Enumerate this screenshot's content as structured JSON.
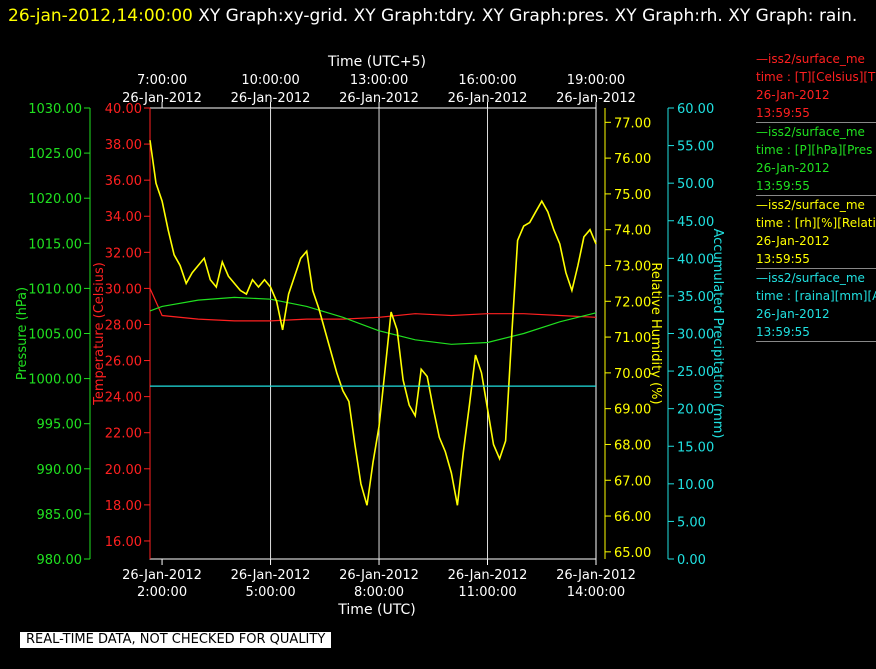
{
  "header": {
    "timestamp": "26-jan-2012,14:00:00",
    "title": "XY Graph:xy-grid.  XY Graph:tdry.  XY Graph:pres.  XY Graph:rh.  XY Graph: rain."
  },
  "quality_note": "REAL-TIME DATA, NOT CHECKED FOR QUALITY",
  "legend": [
    {
      "color": "#ff2020",
      "name": "—iss2/surface_me",
      "line2": "time : [T][Celsius][T",
      "date": "26-Jan-2012",
      "time": "13:59:55"
    },
    {
      "color": "#20e020",
      "name": "—iss2/surface_me",
      "line2": "time : [P][hPa][Pres",
      "date": "26-Jan-2012",
      "time": "13:59:55"
    },
    {
      "color": "#ffff00",
      "name": "—iss2/surface_me",
      "line2": "time : [rh][%][Relati",
      "date": "26-Jan-2012",
      "time": "13:59:55"
    },
    {
      "color": "#20e0e0",
      "name": "—iss2/surface_me",
      "line2": "time : [raina][mm][A",
      "date": "26-Jan-2012",
      "time": "13:59:55"
    }
  ],
  "chart_data": {
    "type": "line",
    "x_bottom": {
      "label": "Time (UTC)",
      "range": [
        "26-Jan-2012 1:40:00",
        "26-Jan-2012 14:00:00"
      ],
      "ticks": [
        {
          "date": "26-Jan-2012",
          "time": "2:00:00"
        },
        {
          "date": "26-Jan-2012",
          "time": "5:00:00"
        },
        {
          "date": "26-Jan-2012",
          "time": "8:00:00"
        },
        {
          "date": "26-Jan-2012",
          "time": "11:00:00"
        },
        {
          "date": "26-Jan-2012",
          "time": "14:00:00"
        }
      ]
    },
    "x_top": {
      "label": "Time (UTC+5)",
      "ticks": [
        {
          "time": "7:00:00",
          "date": "26-Jan-2012"
        },
        {
          "time": "10:00:00",
          "date": "26-Jan-2012"
        },
        {
          "time": "13:00:00",
          "date": "26-Jan-2012"
        },
        {
          "time": "16:00:00",
          "date": "26-Jan-2012"
        },
        {
          "time": "19:00:00",
          "date": "26-Jan-2012"
        }
      ]
    },
    "axes": {
      "pressure": {
        "label": "Pressure (hPa)",
        "color": "#20e020",
        "range": [
          980,
          1030
        ],
        "ticks": [
          "1030.00",
          "1025.00",
          "1020.00",
          "1015.00",
          "1010.00",
          "1005.00",
          "1000.00",
          "995.00",
          "990.00",
          "985.00",
          "980.00"
        ]
      },
      "temperature": {
        "label": "Temperature (Celsius)",
        "color": "#ff2020",
        "range": [
          15,
          40
        ],
        "ticks": [
          "40.00",
          "38.00",
          "36.00",
          "34.00",
          "32.00",
          "30.00",
          "28.00",
          "26.00",
          "24.00",
          "22.00",
          "20.00",
          "18.00",
          "16.00"
        ]
      },
      "rh": {
        "label": "Relative Humidity (%)",
        "color": "#ffff00",
        "range": [
          64.8,
          77.4
        ],
        "ticks": [
          "77.00",
          "76.00",
          "75.00",
          "74.00",
          "73.00",
          "72.00",
          "71.00",
          "70.00",
          "69.00",
          "68.00",
          "67.00",
          "66.00",
          "65.00"
        ]
      },
      "rain": {
        "label": "Accumulated Precipitation (mm)",
        "color": "#20e0e0",
        "range": [
          0,
          60
        ],
        "ticks": [
          "60.00",
          "55.00",
          "50.00",
          "45.00",
          "40.00",
          "35.00",
          "30.00",
          "25.00",
          "20.00",
          "15.00",
          "10.00",
          "5.00",
          "0.00"
        ]
      }
    },
    "grid_x": true,
    "series": [
      {
        "axis": "temperature",
        "color": "#ff2020",
        "x": [
          "1:40",
          "2:00",
          "3:00",
          "4:00",
          "5:00",
          "6:00",
          "7:00",
          "8:00",
          "9:00",
          "10:00",
          "11:00",
          "12:00",
          "13:00",
          "14:00"
        ],
        "values": [
          30.0,
          28.5,
          28.3,
          28.2,
          28.2,
          28.3,
          28.3,
          28.4,
          28.6,
          28.5,
          28.6,
          28.6,
          28.5,
          28.4
        ]
      },
      {
        "axis": "pressure",
        "color": "#20e020",
        "x": [
          "1:40",
          "2:00",
          "3:00",
          "4:00",
          "5:00",
          "6:00",
          "7:00",
          "8:00",
          "9:00",
          "10:00",
          "11:00",
          "12:00",
          "13:00",
          "14:00"
        ],
        "values": [
          1007.5,
          1008.0,
          1008.7,
          1009.0,
          1008.8,
          1008.0,
          1006.8,
          1005.3,
          1004.3,
          1003.8,
          1004.0,
          1005.0,
          1006.3,
          1007.3
        ]
      },
      {
        "axis": "rh",
        "color": "#ffff00",
        "x": [
          "1:40",
          "1:50",
          "2:00",
          "2:10",
          "2:20",
          "2:30",
          "2:40",
          "2:50",
          "3:00",
          "3:10",
          "3:20",
          "3:30",
          "3:40",
          "3:50",
          "4:00",
          "4:10",
          "4:20",
          "4:30",
          "4:40",
          "4:50",
          "5:00",
          "5:10",
          "5:20",
          "5:30",
          "5:40",
          "5:50",
          "6:00",
          "6:10",
          "6:20",
          "6:30",
          "6:40",
          "6:50",
          "7:00",
          "7:10",
          "7:20",
          "7:30",
          "7:40",
          "7:50",
          "8:00",
          "8:10",
          "8:20",
          "8:30",
          "8:40",
          "8:50",
          "9:00",
          "9:10",
          "9:20",
          "9:30",
          "9:40",
          "9:50",
          "10:00",
          "10:10",
          "10:20",
          "10:30",
          "10:40",
          "10:50",
          "11:00",
          "11:10",
          "11:20",
          "11:30",
          "11:40",
          "11:50",
          "12:00",
          "12:10",
          "12:20",
          "12:30",
          "12:40",
          "12:50",
          "13:00",
          "13:10",
          "13:20",
          "13:30",
          "13:40",
          "13:50",
          "14:00"
        ],
        "values": [
          76.5,
          75.3,
          74.8,
          74.0,
          73.3,
          73.0,
          72.5,
          72.8,
          73.0,
          73.2,
          72.6,
          72.4,
          73.1,
          72.7,
          72.5,
          72.3,
          72.2,
          72.6,
          72.4,
          72.6,
          72.4,
          72.0,
          71.2,
          72.2,
          72.7,
          73.2,
          73.4,
          72.3,
          71.8,
          71.2,
          70.6,
          70.0,
          69.5,
          69.2,
          68.0,
          66.9,
          66.3,
          67.5,
          68.5,
          70.1,
          71.7,
          71.2,
          69.8,
          69.1,
          68.8,
          70.1,
          69.9,
          69.0,
          68.2,
          67.8,
          67.2,
          66.3,
          67.8,
          69.1,
          70.5,
          70.0,
          69.0,
          68.0,
          67.6,
          68.1,
          71.0,
          73.7,
          74.1,
          74.2,
          74.5,
          74.8,
          74.5,
          74.0,
          73.6,
          72.8,
          72.3,
          73.0,
          73.8,
          74.0,
          73.6
        ]
      },
      {
        "axis": "rain",
        "color": "#20e0e0",
        "x": [
          "1:40",
          "14:00"
        ],
        "values": [
          23.0,
          23.0
        ]
      }
    ]
  }
}
